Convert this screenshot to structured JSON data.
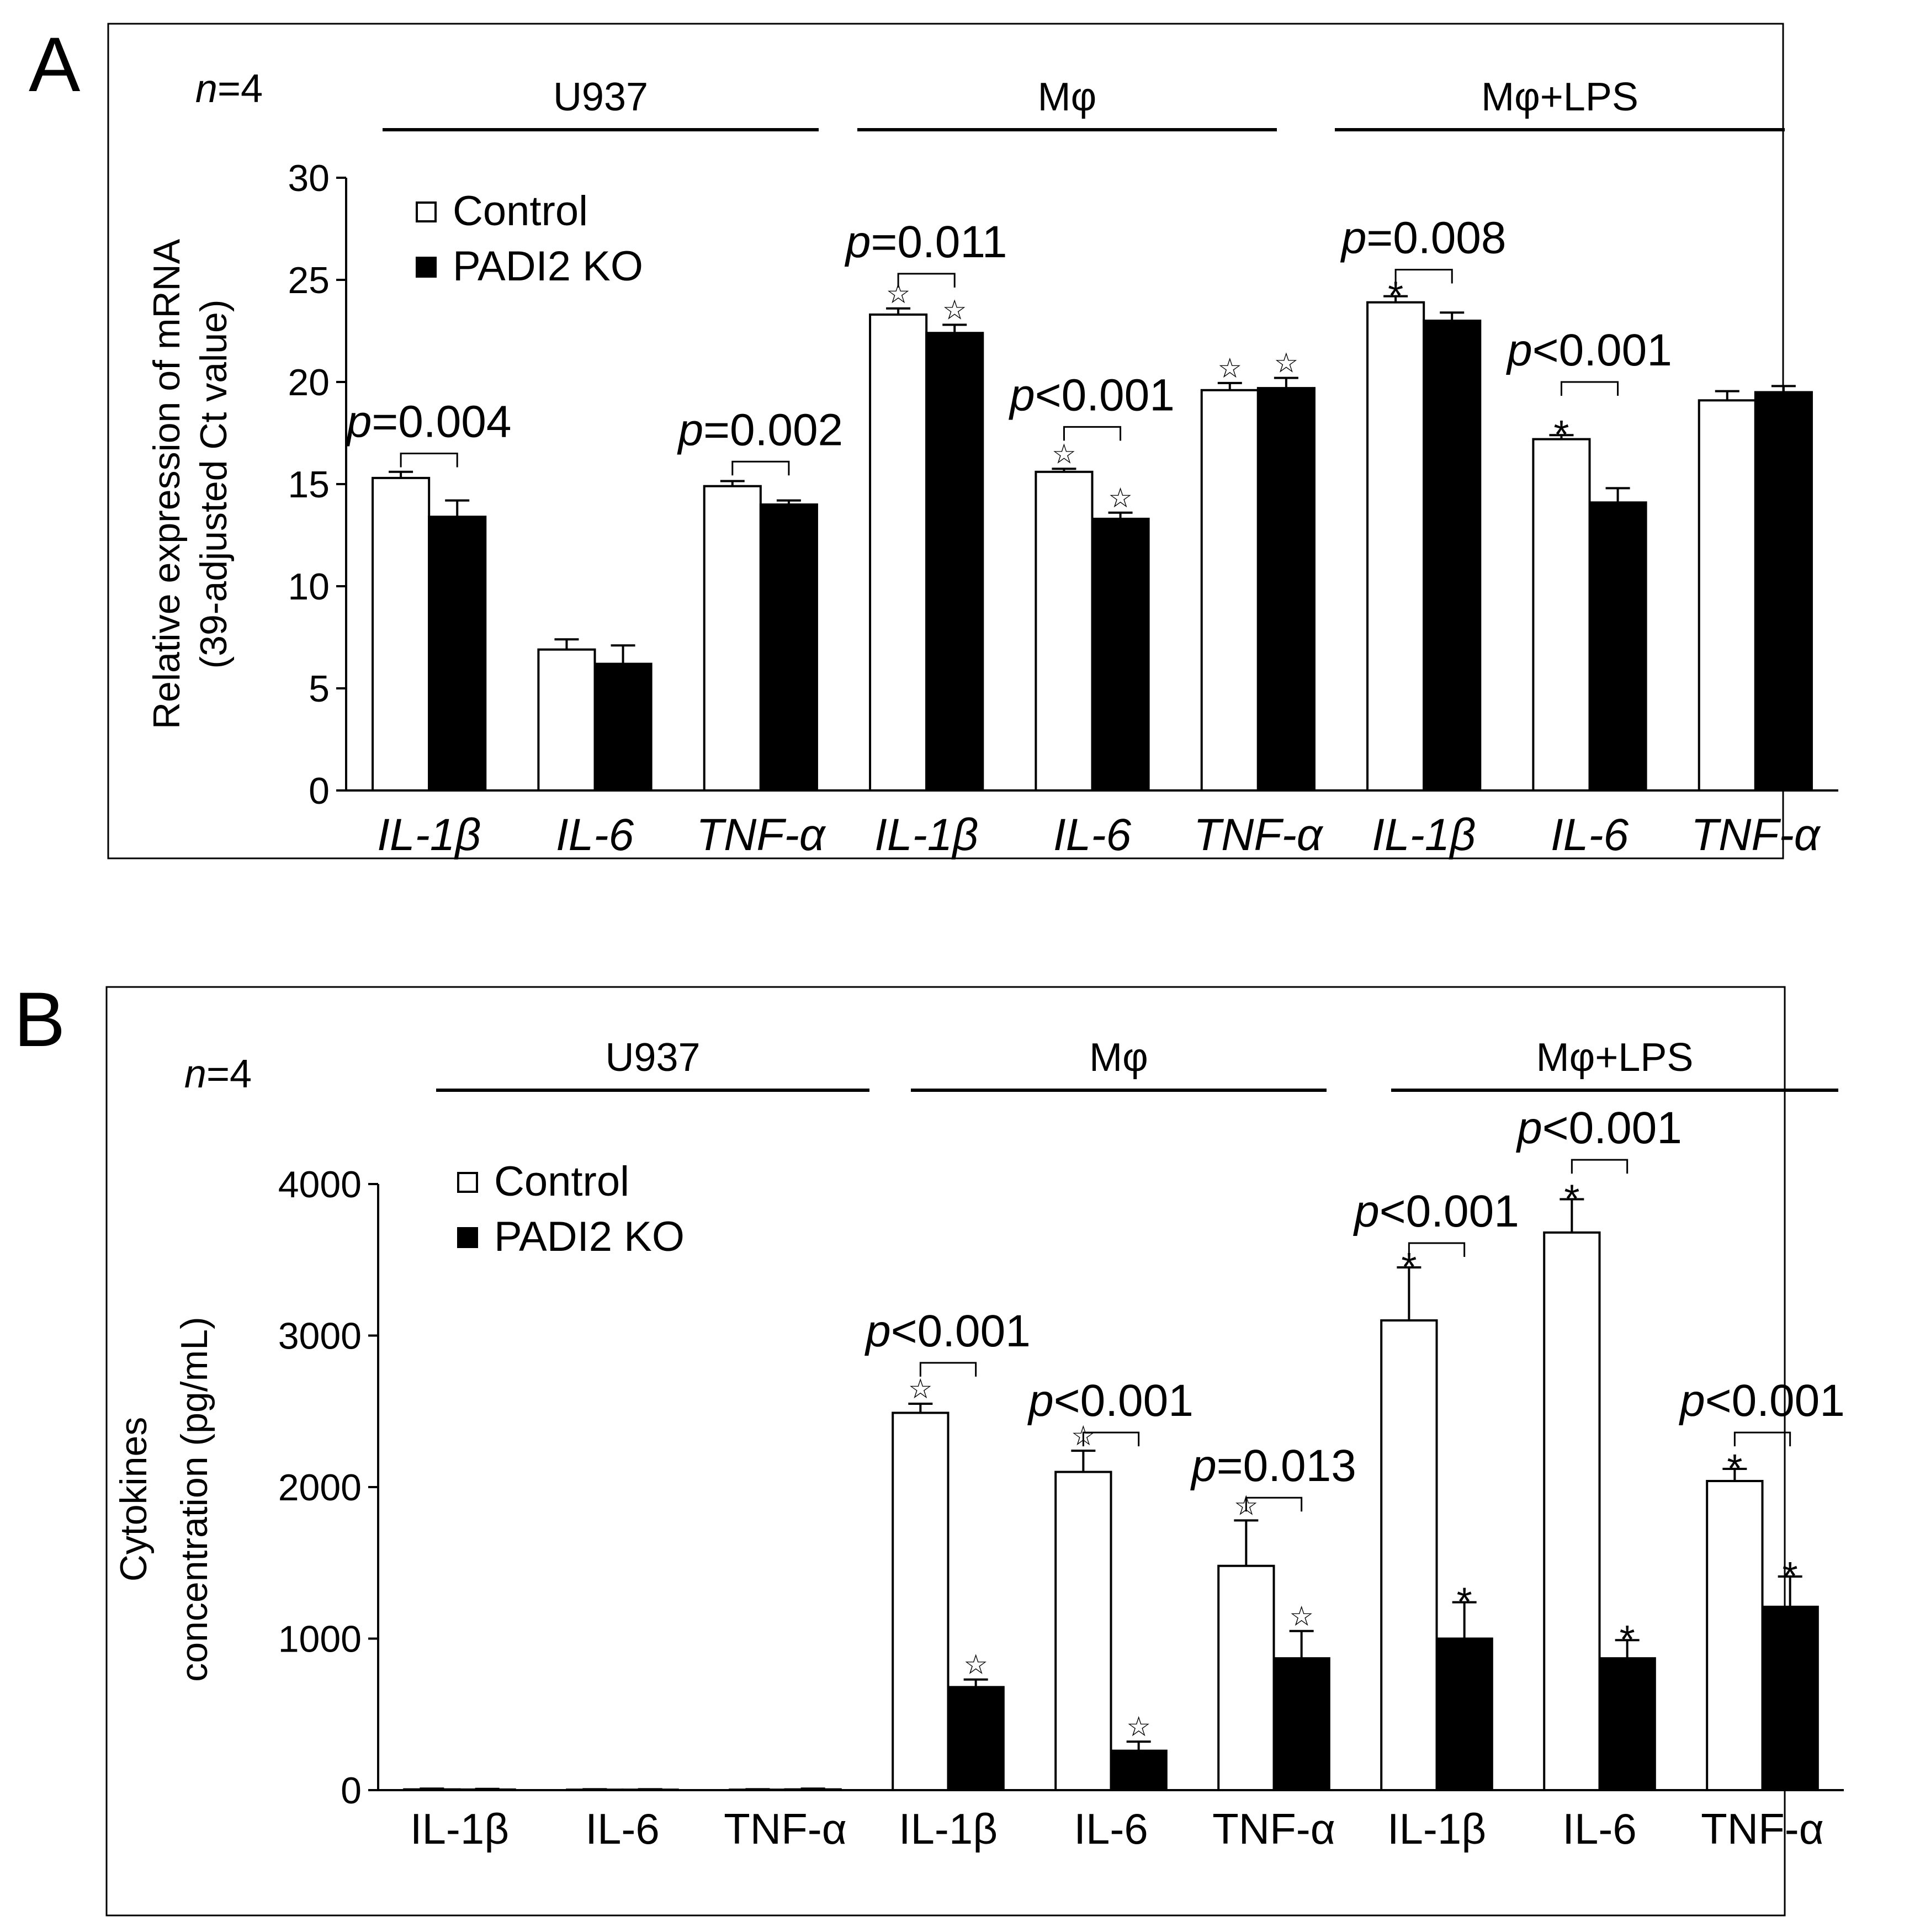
{
  "chart_data": [
    {
      "panel_label": "A",
      "n_prefix": "n",
      "n_value": "=4",
      "type": "bar",
      "ylabel": [
        "Relative expression of mRNA",
        "(39-adjusted Ct value)"
      ],
      "ylim": [
        0,
        30
      ],
      "yticks": [
        "0",
        "5",
        "10",
        "15",
        "20",
        "25",
        "30"
      ],
      "ytick_values": [
        0,
        5,
        10,
        15,
        20,
        25,
        30
      ],
      "categories": [
        "IL-1β",
        "IL-6",
        "TNF-α",
        "IL-1β",
        "IL-6",
        "TNF-α",
        "IL-1β",
        "IL-6",
        "TNF-α"
      ],
      "categories_italic": true,
      "groups": [
        "U937",
        "Mφ",
        "Mφ+LPS"
      ],
      "legend": [
        "Control",
        "PADI2 KO"
      ],
      "legend_position": "top-left",
      "series": [
        {
          "name": "Control",
          "color": "#ffffff",
          "values": [
            15.3,
            6.9,
            14.9,
            23.3,
            15.6,
            19.6,
            23.9,
            17.2,
            19.1
          ],
          "errors": [
            0.3,
            0.5,
            0.25,
            0.3,
            0.15,
            0.35,
            0.3,
            0.2,
            0.45
          ]
        },
        {
          "name": "PADI2 KO",
          "color": "#000000",
          "values": [
            13.4,
            6.2,
            14.0,
            22.4,
            13.3,
            19.7,
            23.0,
            14.1,
            19.5
          ],
          "errors": [
            0.8,
            0.9,
            0.2,
            0.4,
            0.3,
            0.5,
            0.4,
            0.7,
            0.3
          ]
        }
      ],
      "markers": [
        {
          "category": 3,
          "series": 0,
          "symbol": "☆"
        },
        {
          "category": 3,
          "series": 1,
          "symbol": "☆"
        },
        {
          "category": 4,
          "series": 0,
          "symbol": "☆"
        },
        {
          "category": 4,
          "series": 1,
          "symbol": "☆"
        },
        {
          "category": 5,
          "series": 0,
          "symbol": "☆"
        },
        {
          "category": 5,
          "series": 1,
          "symbol": "☆"
        },
        {
          "category": 6,
          "series": 0,
          "symbol": "*"
        },
        {
          "category": 7,
          "series": 0,
          "symbol": "*"
        }
      ],
      "annotations": [
        {
          "category": 0,
          "p_prefix": "p",
          "text": "=0.004",
          "y": 16.5
        },
        {
          "category": 2,
          "p_prefix": "p",
          "text": "=0.002",
          "y": 16.1
        },
        {
          "category": 3,
          "p_prefix": "p",
          "text": "=0.011",
          "y": 25.3
        },
        {
          "category": 4,
          "p_prefix": "p",
          "text": "<0.001",
          "y": 17.8
        },
        {
          "category": 6,
          "p_prefix": "p",
          "text": "=0.008",
          "y": 25.5
        },
        {
          "category": 7,
          "p_prefix": "p",
          "text": "<0.001",
          "y": 20.0
        }
      ]
    },
    {
      "panel_label": "B",
      "n_prefix": "n",
      "n_value": "=4",
      "type": "bar",
      "ylabel": [
        "Cytokines",
        "concentration (pg/mL)"
      ],
      "ylim": [
        0,
        4000
      ],
      "yticks": [
        "0",
        "1000",
        "2000",
        "3000",
        "4000"
      ],
      "ytick_values": [
        0,
        1000,
        2000,
        3000,
        4000
      ],
      "categories": [
        "IL-1β",
        "IL-6",
        "TNF-α",
        "IL-1β",
        "IL-6",
        "TNF-α",
        "IL-1β",
        "IL-6",
        "TNF-α"
      ],
      "categories_italic": false,
      "groups": [
        "U937",
        "Mφ",
        "Mφ+LPS"
      ],
      "legend": [
        "Control",
        "PADI2 KO"
      ],
      "legend_position": "top-left",
      "series": [
        {
          "name": "Control",
          "color": "#ffffff",
          "values": [
            5,
            3,
            3,
            2490,
            2100,
            1480,
            3100,
            3680,
            2040
          ],
          "errors": [
            5,
            3,
            3,
            60,
            140,
            300,
            350,
            220,
            80
          ]
        },
        {
          "name": "PADI2 KO",
          "color": "#000000",
          "values": [
            4,
            3,
            5,
            680,
            260,
            870,
            1000,
            870,
            1210
          ],
          "errors": [
            4,
            3,
            5,
            50,
            60,
            180,
            240,
            120,
            200
          ]
        }
      ],
      "markers": [
        {
          "category": 3,
          "series": 0,
          "symbol": "☆"
        },
        {
          "category": 3,
          "series": 1,
          "symbol": "☆"
        },
        {
          "category": 4,
          "series": 0,
          "symbol": "☆"
        },
        {
          "category": 4,
          "series": 1,
          "symbol": "☆"
        },
        {
          "category": 5,
          "series": 0,
          "symbol": "☆"
        },
        {
          "category": 5,
          "series": 1,
          "symbol": "☆"
        },
        {
          "category": 6,
          "series": 0,
          "symbol": "*"
        },
        {
          "category": 6,
          "series": 1,
          "symbol": "*"
        },
        {
          "category": 7,
          "series": 0,
          "symbol": "*"
        },
        {
          "category": 7,
          "series": 1,
          "symbol": "*"
        },
        {
          "category": 8,
          "series": 0,
          "symbol": "*"
        },
        {
          "category": 8,
          "series": 1,
          "symbol": "*"
        }
      ],
      "annotations": [
        {
          "category": 3,
          "p_prefix": "p",
          "text": "<0.001",
          "y": 2820
        },
        {
          "category": 4,
          "p_prefix": "p",
          "text": "<0.001",
          "y": 2360
        },
        {
          "category": 5,
          "p_prefix": "p",
          "text": "=0.013",
          "y": 1930
        },
        {
          "category": 6,
          "p_prefix": "p",
          "text": "<0.001",
          "y": 3610
        },
        {
          "category": 7,
          "p_prefix": "p",
          "text": "<0.001",
          "y": 4160
        },
        {
          "category": 8,
          "p_prefix": "p",
          "text": "<0.001",
          "y": 2360
        }
      ]
    }
  ]
}
